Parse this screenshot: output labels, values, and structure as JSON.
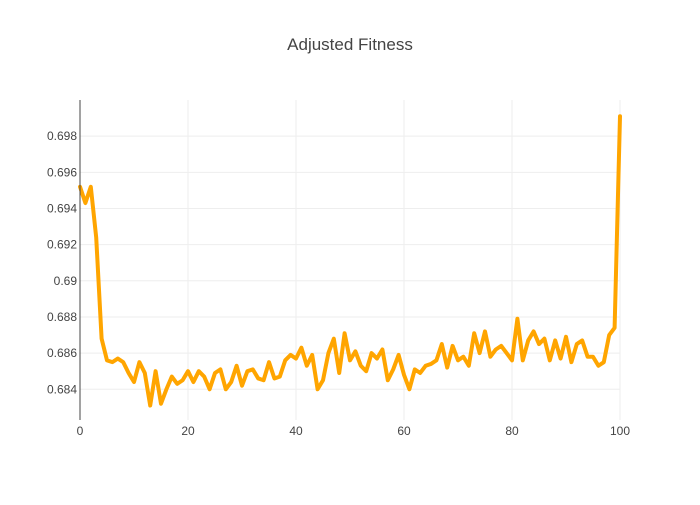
{
  "chart_data": {
    "type": "line",
    "title": "Adjusted Fitness",
    "xlabel": "",
    "ylabel": "",
    "xlim": [
      0,
      100
    ],
    "ylim": [
      0.6823,
      0.7
    ],
    "x_ticks": [
      0,
      20,
      40,
      60,
      80,
      100
    ],
    "x_tick_labels": [
      "0",
      "20",
      "40",
      "60",
      "80",
      "100"
    ],
    "y_ticks": [
      0.684,
      0.686,
      0.688,
      0.69,
      0.692,
      0.694,
      0.696,
      0.698
    ],
    "y_tick_labels": [
      "0.684",
      "0.686",
      "0.688",
      "0.69",
      "0.692",
      "0.694",
      "0.696",
      "0.698"
    ],
    "grid": true,
    "series": [
      {
        "color": "#ffa500",
        "x": [
          0,
          1,
          2,
          3,
          4,
          5,
          6,
          7,
          8,
          9,
          10,
          11,
          12,
          13,
          14,
          15,
          16,
          17,
          18,
          19,
          20,
          21,
          22,
          23,
          24,
          25,
          26,
          27,
          28,
          29,
          30,
          31,
          32,
          33,
          34,
          35,
          36,
          37,
          38,
          39,
          40,
          41,
          42,
          43,
          44,
          45,
          46,
          47,
          48,
          49,
          50,
          51,
          52,
          53,
          54,
          55,
          56,
          57,
          58,
          59,
          60,
          61,
          62,
          63,
          64,
          65,
          66,
          67,
          68,
          69,
          70,
          71,
          72,
          73,
          74,
          75,
          76,
          77,
          78,
          79,
          80,
          81,
          82,
          83,
          84,
          85,
          86,
          87,
          88,
          89,
          90,
          91,
          92,
          93,
          94,
          95,
          96,
          97,
          98,
          99,
          100
        ],
        "y": [
          0.6952,
          0.6943,
          0.6952,
          0.6924,
          0.6868,
          0.6856,
          0.6855,
          0.6857,
          0.6855,
          0.6849,
          0.6844,
          0.6855,
          0.6849,
          0.6831,
          0.685,
          0.6832,
          0.684,
          0.6847,
          0.6843,
          0.6845,
          0.685,
          0.6844,
          0.685,
          0.6847,
          0.684,
          0.6849,
          0.6851,
          0.684,
          0.6844,
          0.6853,
          0.6842,
          0.685,
          0.6851,
          0.6846,
          0.6845,
          0.6855,
          0.6846,
          0.6847,
          0.6856,
          0.6859,
          0.6857,
          0.6863,
          0.6853,
          0.6859,
          0.684,
          0.6845,
          0.686,
          0.6868,
          0.6849,
          0.6871,
          0.6856,
          0.6861,
          0.6853,
          0.685,
          0.686,
          0.6857,
          0.6862,
          0.6845,
          0.6851,
          0.6859,
          0.6848,
          0.684,
          0.6851,
          0.6849,
          0.6853,
          0.6854,
          0.6856,
          0.6865,
          0.6852,
          0.6864,
          0.6856,
          0.6858,
          0.6853,
          0.6871,
          0.686,
          0.6872,
          0.6858,
          0.6862,
          0.6864,
          0.686,
          0.6856,
          0.6879,
          0.6856,
          0.6867,
          0.6872,
          0.6865,
          0.6868,
          0.6856,
          0.6867,
          0.6857,
          0.6869,
          0.6855,
          0.6865,
          0.6867,
          0.6858,
          0.6858,
          0.6853,
          0.6855,
          0.687,
          0.6874,
          0.6991
        ]
      }
    ]
  }
}
